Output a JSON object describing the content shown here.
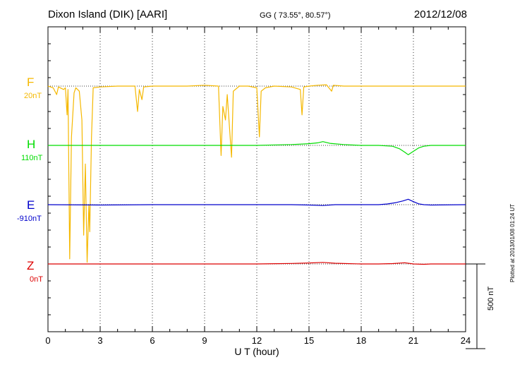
{
  "header": {
    "station": "Dixon Island (DIK)  [AARI]",
    "coords": "GG ( 73.55°,  80.57°)",
    "date": "2012/12/08"
  },
  "footer": {
    "plotted": "Plotted at 2013/01/08 01:24 UT",
    "scale": "500 nT"
  },
  "colors": {
    "F": "#f5b800",
    "H": "#00dd00",
    "E": "#0000cc",
    "Z": "#dd0000"
  },
  "chart_data": {
    "type": "line",
    "xlabel": "U T (hour)",
    "xlim": [
      0,
      24
    ],
    "xticks": [
      "0",
      "3",
      "6",
      "9",
      "12",
      "15",
      "18",
      "21",
      "24"
    ],
    "ylim_nT": [
      -400,
      1400
    ],
    "scale_bar_nT": 500,
    "series": [
      {
        "name": "F",
        "baseline_label": "20nT",
        "offset_nT": 1050,
        "points": [
          [
            0,
            0
          ],
          [
            0.3,
            -10
          ],
          [
            0.5,
            -50
          ],
          [
            0.6,
            -5
          ],
          [
            0.9,
            -20
          ],
          [
            1.0,
            -10
          ],
          [
            1.1,
            -170
          ],
          [
            1.15,
            -20
          ],
          [
            1.25,
            -1020
          ],
          [
            1.35,
            -300
          ],
          [
            1.5,
            -40
          ],
          [
            1.6,
            -10
          ],
          [
            1.8,
            -30
          ],
          [
            1.95,
            -200
          ],
          [
            2.05,
            -880
          ],
          [
            2.15,
            -460
          ],
          [
            2.25,
            -1040
          ],
          [
            2.35,
            -700
          ],
          [
            2.4,
            -860
          ],
          [
            2.5,
            -300
          ],
          [
            2.6,
            -10
          ],
          [
            3.0,
            -5
          ],
          [
            4.0,
            0
          ],
          [
            5.0,
            0
          ],
          [
            5.15,
            -150
          ],
          [
            5.25,
            -20
          ],
          [
            5.4,
            -80
          ],
          [
            5.5,
            -5
          ],
          [
            6.0,
            0
          ],
          [
            8.0,
            0
          ],
          [
            9.0,
            5
          ],
          [
            9.8,
            0
          ],
          [
            9.95,
            -410
          ],
          [
            10.05,
            -120
          ],
          [
            10.2,
            -200
          ],
          [
            10.3,
            -50
          ],
          [
            10.55,
            -420
          ],
          [
            10.65,
            -30
          ],
          [
            11.0,
            0
          ],
          [
            11.5,
            0
          ],
          [
            12.0,
            -10
          ],
          [
            12.15,
            -300
          ],
          [
            12.25,
            -30
          ],
          [
            12.5,
            -10
          ],
          [
            13.0,
            0
          ],
          [
            14.0,
            -5
          ],
          [
            14.5,
            -20
          ],
          [
            14.6,
            -170
          ],
          [
            14.7,
            -5
          ],
          [
            15.0,
            0
          ],
          [
            15.5,
            5
          ],
          [
            16.0,
            8
          ],
          [
            16.3,
            -30
          ],
          [
            16.4,
            5
          ],
          [
            17.0,
            0
          ],
          [
            19.0,
            0
          ],
          [
            20.0,
            0
          ],
          [
            21.0,
            0
          ],
          [
            22.0,
            0
          ],
          [
            24.0,
            0
          ]
        ]
      },
      {
        "name": "H",
        "baseline_label": "110nT",
        "offset_nT": 700,
        "points": [
          [
            0,
            0
          ],
          [
            3,
            0
          ],
          [
            6,
            0
          ],
          [
            9,
            0
          ],
          [
            12,
            0
          ],
          [
            14,
            5
          ],
          [
            15,
            10
          ],
          [
            15.5,
            15
          ],
          [
            15.8,
            22
          ],
          [
            16.2,
            12
          ],
          [
            17,
            5
          ],
          [
            18,
            0
          ],
          [
            19,
            0
          ],
          [
            19.8,
            -5
          ],
          [
            20.2,
            -20
          ],
          [
            20.5,
            -40
          ],
          [
            20.7,
            -55
          ],
          [
            21.0,
            -35
          ],
          [
            21.3,
            -15
          ],
          [
            21.6,
            -5
          ],
          [
            22,
            0
          ],
          [
            24,
            0
          ]
        ]
      },
      {
        "name": "E",
        "baseline_label": "-910nT",
        "offset_nT": 350,
        "points": [
          [
            0,
            0
          ],
          [
            3,
            -2
          ],
          [
            6,
            0
          ],
          [
            9,
            0
          ],
          [
            12,
            0
          ],
          [
            14,
            0
          ],
          [
            15,
            -2
          ],
          [
            15.8,
            -5
          ],
          [
            16.5,
            0
          ],
          [
            18,
            0
          ],
          [
            19,
            0
          ],
          [
            19.5,
            4
          ],
          [
            20.0,
            12
          ],
          [
            20.4,
            22
          ],
          [
            20.7,
            32
          ],
          [
            21.0,
            18
          ],
          [
            21.3,
            5
          ],
          [
            21.6,
            0
          ],
          [
            22,
            -2
          ],
          [
            24,
            0
          ]
        ]
      },
      {
        "name": "Z",
        "baseline_label": "0nT",
        "offset_nT": 0,
        "points": [
          [
            0,
            0
          ],
          [
            3,
            0
          ],
          [
            6,
            0
          ],
          [
            9,
            0
          ],
          [
            12,
            0
          ],
          [
            14,
            3
          ],
          [
            15,
            6
          ],
          [
            15.8,
            9
          ],
          [
            16.5,
            4
          ],
          [
            18,
            0
          ],
          [
            19,
            0
          ],
          [
            19.8,
            2
          ],
          [
            20.5,
            7
          ],
          [
            21.0,
            0
          ],
          [
            21.6,
            -2
          ],
          [
            22,
            0
          ],
          [
            24,
            0
          ]
        ]
      }
    ]
  }
}
